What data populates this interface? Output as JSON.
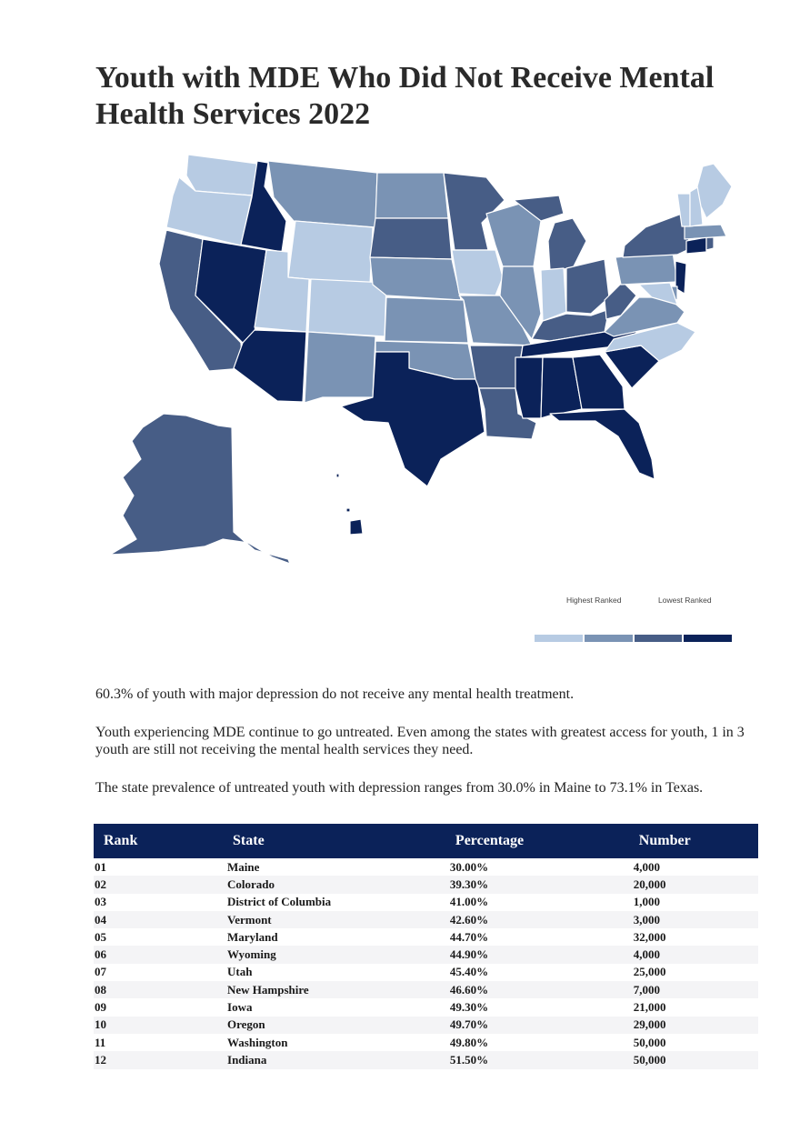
{
  "title": "Youth with MDE Who Did Not Receive Mental Health Services 2022",
  "legend": {
    "high_label": "Highest Ranked",
    "low_label": "Lowest Ranked",
    "colors": [
      "#b7cbe3",
      "#7a93b4",
      "#475d86",
      "#0b2259"
    ]
  },
  "paragraphs": [
    "60.3% of youth with major depression do not receive any mental health treatment.",
    "Youth experiencing MDE continue to go untreated. Even among the states with greatest access for youth, 1 in 3 youth are still not receiving the mental health services they need.",
    "The state prevalence of untreated youth with depression ranges from 30.0% in Maine to 73.1% in Texas."
  ],
  "table": {
    "headers": [
      "Rank",
      "State",
      "Percentage",
      "Number"
    ],
    "rows": [
      [
        "01",
        "Maine",
        "30.00%",
        "4,000"
      ],
      [
        "02",
        "Colorado",
        "39.30%",
        "20,000"
      ],
      [
        "03",
        "District of Columbia",
        "41.00%",
        "1,000"
      ],
      [
        "04",
        "Vermont",
        "42.60%",
        "3,000"
      ],
      [
        "05",
        "Maryland",
        "44.70%",
        "32,000"
      ],
      [
        "06",
        "Wyoming",
        "44.90%",
        "4,000"
      ],
      [
        "07",
        "Utah",
        "45.40%",
        "25,000"
      ],
      [
        "08",
        "New Hampshire",
        "46.60%",
        "7,000"
      ],
      [
        "09",
        "Iowa",
        "49.30%",
        "21,000"
      ],
      [
        "10",
        "Oregon",
        "49.70%",
        "29,000"
      ],
      [
        "11",
        "Washington",
        "49.80%",
        "50,000"
      ],
      [
        "12",
        "Indiana",
        "51.50%",
        "50,000"
      ]
    ]
  }
}
